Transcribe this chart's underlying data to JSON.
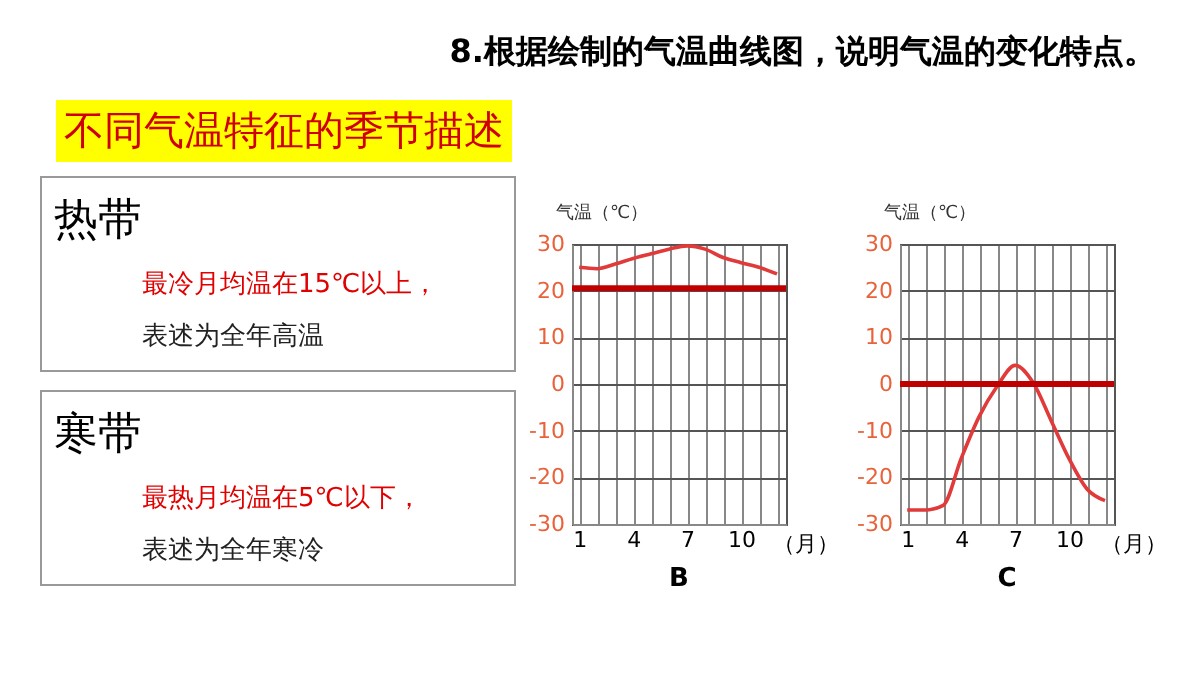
{
  "chart_data": [
    {
      "type": "other",
      "title": "8.根据绘制的气温曲线图，说明气温的变化特点。",
      "annotations": [
        "不同气温特征的季节描述",
        "热带",
        "最冷月均温在15℃以上，",
        "表述为全年高温",
        "寒带",
        "最热月均温在5℃以下，",
        "表述为全年寒冷"
      ]
    },
    {
      "type": "line",
      "title": "B",
      "xlabel": "（月）",
      "ylabel": "气温（℃）",
      "x": [
        1,
        2,
        3,
        4,
        5,
        6,
        7,
        8,
        9,
        10,
        11,
        12
      ],
      "xlim": [
        0.6,
        12.5
      ],
      "xticks": [
        1,
        {
          "value": 2,
          "label": null
        },
        {
          "value": 3,
          "label": null
        },
        4,
        {
          "value": 5,
          "label": null
        },
        {
          "value": 6,
          "label": null
        },
        7,
        {
          "value": 8,
          "label": null
        },
        {
          "value": 9,
          "label": null
        },
        10,
        {
          "value": 11,
          "label": null
        },
        {
          "value": 12,
          "label": null
        }
      ],
      "ylim": [
        -30,
        30
      ],
      "yticks": [
        -30,
        -20,
        -10,
        0,
        10,
        20,
        30
      ],
      "grid": true,
      "series": [
        {
          "color": "#e03a3a",
          "values": [
            25,
            24.7,
            25.7,
            26.9,
            27.9,
            28.9,
            29.6,
            28.9,
            27.1,
            26,
            25,
            23.6
          ]
        }
      ],
      "ref_lines": [
        {
          "axis": "y",
          "value": 20.5,
          "color": "#c00000"
        }
      ]
    },
    {
      "type": "line",
      "title": "C",
      "xlabel": "（月）",
      "ylabel": "气温（℃）",
      "x": [
        1,
        2,
        3,
        4,
        5,
        6,
        7,
        8,
        9,
        10,
        11,
        12
      ],
      "xlim": [
        0.6,
        12.5
      ],
      "xticks": [
        1,
        {
          "value": 2,
          "label": null
        },
        {
          "value": 3,
          "label": null
        },
        4,
        {
          "value": 5,
          "label": null
        },
        {
          "value": 6,
          "label": null
        },
        7,
        {
          "value": 8,
          "label": null
        },
        {
          "value": 9,
          "label": null
        },
        10,
        {
          "value": 11,
          "label": null
        },
        {
          "value": 12,
          "label": null
        }
      ],
      "ylim": [
        -30,
        30
      ],
      "yticks": [
        -30,
        -20,
        -10,
        0,
        10,
        20,
        30
      ],
      "grid": true,
      "series": [
        {
          "color": "#e03a3a",
          "values": [
            -27,
            -27,
            -26,
            -16,
            -7,
            -0.5,
            4,
            0.3,
            -7.8,
            -16,
            -22.5,
            -25
          ]
        }
      ],
      "ref_lines": [
        {
          "axis": "y",
          "value": 0,
          "color": "#c00000"
        }
      ]
    }
  ]
}
